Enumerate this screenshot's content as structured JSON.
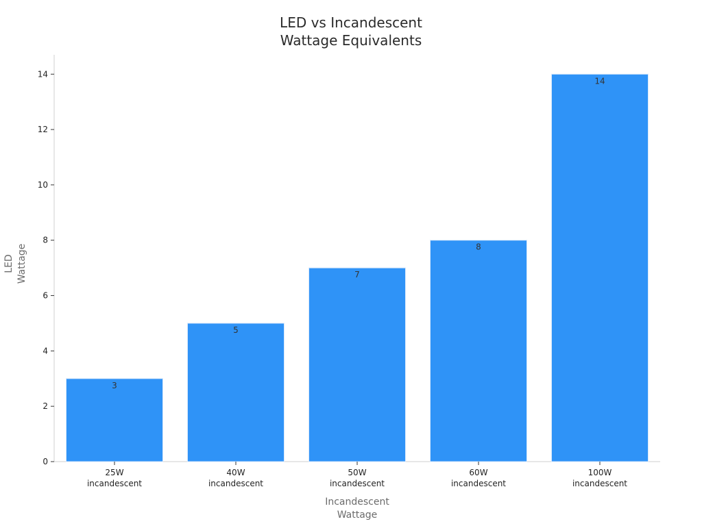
{
  "chart_data": {
    "type": "bar",
    "title_lines": [
      "LED vs Incandescent",
      "Wattage Equivalents"
    ],
    "xlabel_lines": [
      "Incandescent",
      "Wattage"
    ],
    "ylabel_lines": [
      "LED",
      "Wattage"
    ],
    "categories": [
      [
        "25W",
        "incandescent"
      ],
      [
        "40W",
        "incandescent"
      ],
      [
        "50W",
        "incandescent"
      ],
      [
        "60W",
        "incandescent"
      ],
      [
        "100W",
        "incandescent"
      ]
    ],
    "values": [
      3,
      5,
      7,
      8,
      14
    ],
    "data_labels": [
      "3",
      "5",
      "7",
      "8",
      "14"
    ],
    "ylim": [
      0,
      14.7
    ],
    "yticks": [
      0,
      2,
      4,
      6,
      8,
      10,
      12,
      14
    ],
    "grid": false,
    "bar_color": "#2f93f7",
    "bar_edge_color": "#d8e8fb"
  }
}
